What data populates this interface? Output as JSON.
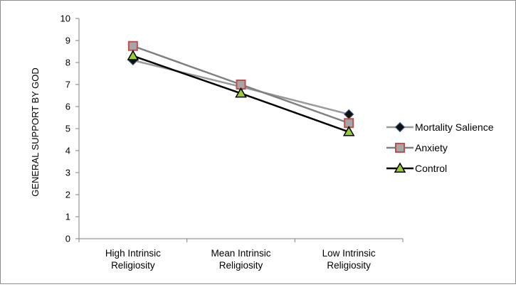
{
  "chart_data": {
    "type": "line",
    "categories": [
      "High Intrinsic\nReligiosity",
      "Mean Intrinsic\nReligiosity",
      "Low Intrinsic\nReligiosity"
    ],
    "ylabel": "GENERAL SUPPORT BY GOD",
    "xlabel": "",
    "ylim": [
      0,
      10
    ],
    "yticks": [
      "0",
      "1",
      "2",
      "3",
      "4",
      "5",
      "6",
      "7",
      "8",
      "9",
      "10"
    ],
    "grid": false,
    "legend_position": "right",
    "series": [
      {
        "name": "Mortality Salience",
        "values": [
          8.1,
          6.9,
          5.65
        ],
        "line_color": "#9a9a9a",
        "marker": "diamond",
        "marker_color": "#111111"
      },
      {
        "name": "Anxiety",
        "values": [
          8.75,
          7.0,
          5.25
        ],
        "line_color": "#7f7f7f",
        "marker": "square",
        "marker_color": "#a6a6a6",
        "marker_edge": "#c0504d"
      },
      {
        "name": "Control",
        "values": [
          8.3,
          6.6,
          4.85
        ],
        "line_color": "#000000",
        "marker": "triangle",
        "marker_color": "#9acd32"
      }
    ]
  }
}
